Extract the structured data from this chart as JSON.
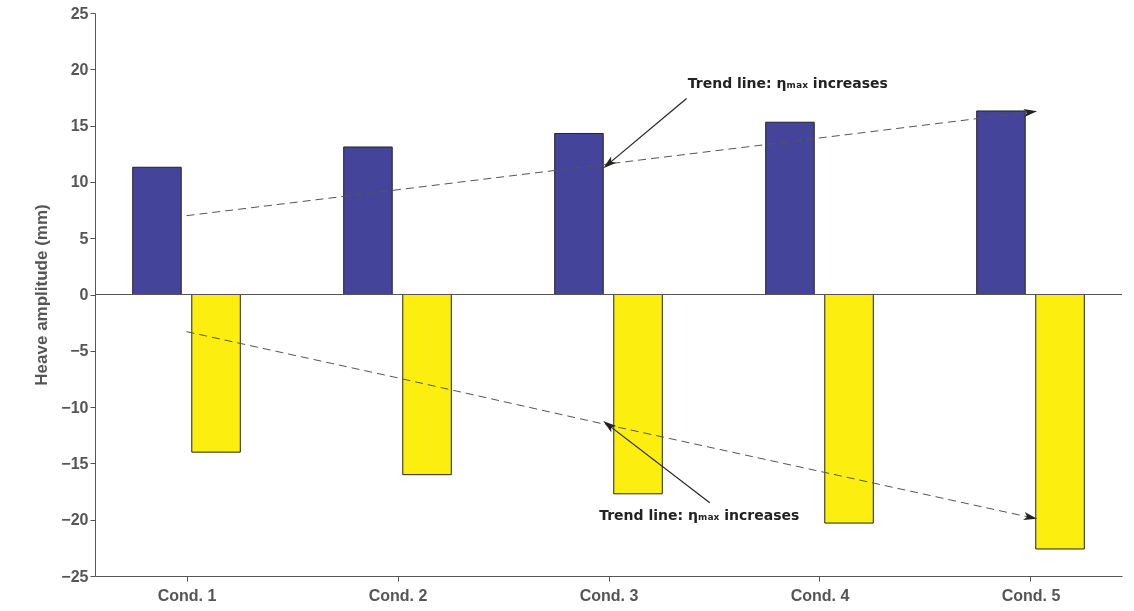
{
  "chart_data": {
    "type": "bar",
    "ylabel": "Heave amplitude (mm)",
    "categories": [
      "Cond. 1",
      "Cond. 2",
      "Cond. 3",
      "Cond. 4",
      "Cond. 5"
    ],
    "series": [
      {
        "color": "#43449a",
        "values": [
          11.3,
          13.1,
          14.3,
          15.3,
          16.3
        ]
      },
      {
        "color": "#fcee0f",
        "values": [
          -14.0,
          -16.0,
          -17.7,
          -20.3,
          -22.6
        ]
      },
      {
        "type": "line",
        "color": "#555555",
        "line_style": "dashed",
        "values": [
          7.0,
          9.3,
          11.6,
          13.9,
          16.2
        ]
      },
      {
        "type": "line",
        "color": "#555555",
        "line_style": "dashed",
        "values": [
          -3.3,
          -7.4,
          -11.6,
          -15.7,
          -19.8
        ]
      }
    ],
    "ylim": [
      -25,
      25
    ],
    "yticks": [
      -25,
      -20,
      -15,
      -10,
      -5,
      0,
      5,
      10,
      15,
      20,
      25
    ],
    "ref_lines": [
      {
        "axis": "y",
        "value": 0,
        "color": "#555555"
      }
    ],
    "annotations": [
      {
        "text": "Trend line: ηₘₐₓ increases",
        "x": "Cond. 3",
        "y": 11.6
      },
      {
        "text": "Trend line: ηₘₐₓ increases",
        "x": "Cond. 3",
        "y": -11.6
      }
    ],
    "grid": false
  }
}
